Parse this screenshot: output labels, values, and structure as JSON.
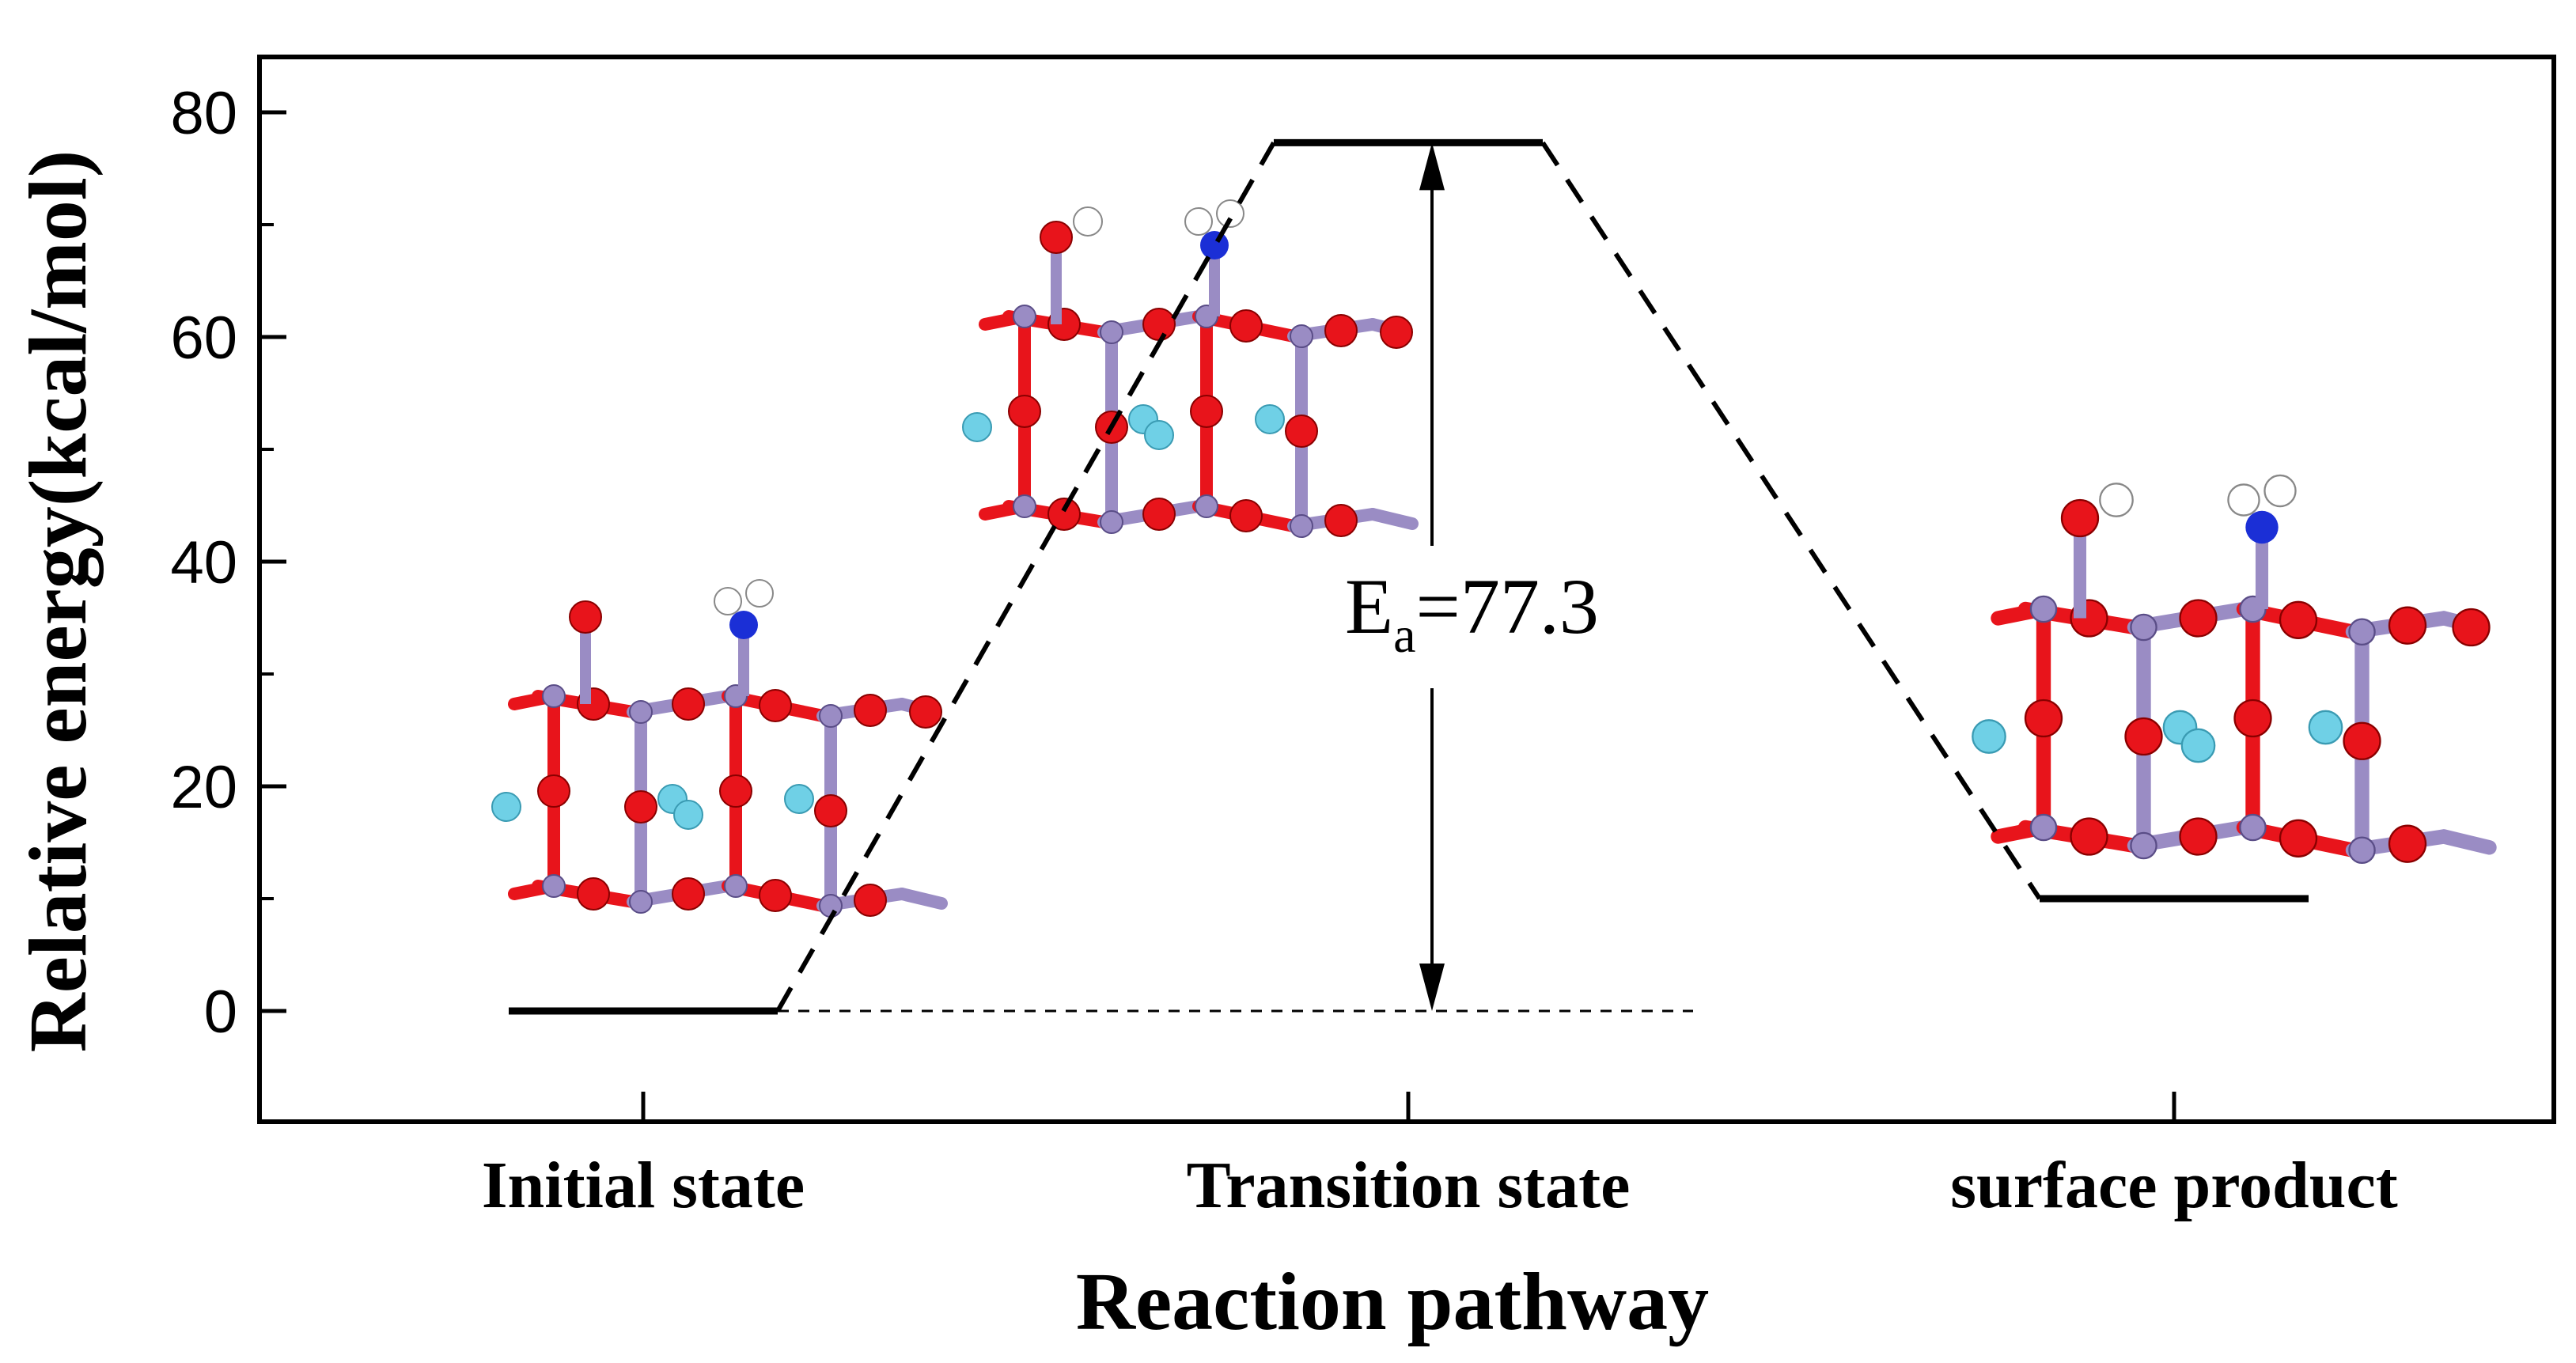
{
  "chart_data": {
    "type": "line",
    "title": "",
    "xlabel": "Reaction pathway",
    "ylabel": "Relative energy(kcal/mol)",
    "categories": [
      "Initial state",
      "Transition state",
      "surface product"
    ],
    "ylim": [
      -10,
      85
    ],
    "yticks": [
      0,
      20,
      40,
      60,
      80
    ],
    "grid": false,
    "series": [
      {
        "values": [
          0,
          77.3,
          10
        ]
      }
    ],
    "annotations": [
      {
        "symbol": "E",
        "subscript": "a",
        "value_text": "=77.3",
        "arrow_from": 0,
        "arrow_to": 77.3
      }
    ]
  },
  "colors": {
    "oxygen": "#e8141b",
    "metal": "#9a8cc4",
    "nitrogen": "#1b2fd6",
    "hydrogen": "#ffffff",
    "ion": "#6fd0e6"
  }
}
